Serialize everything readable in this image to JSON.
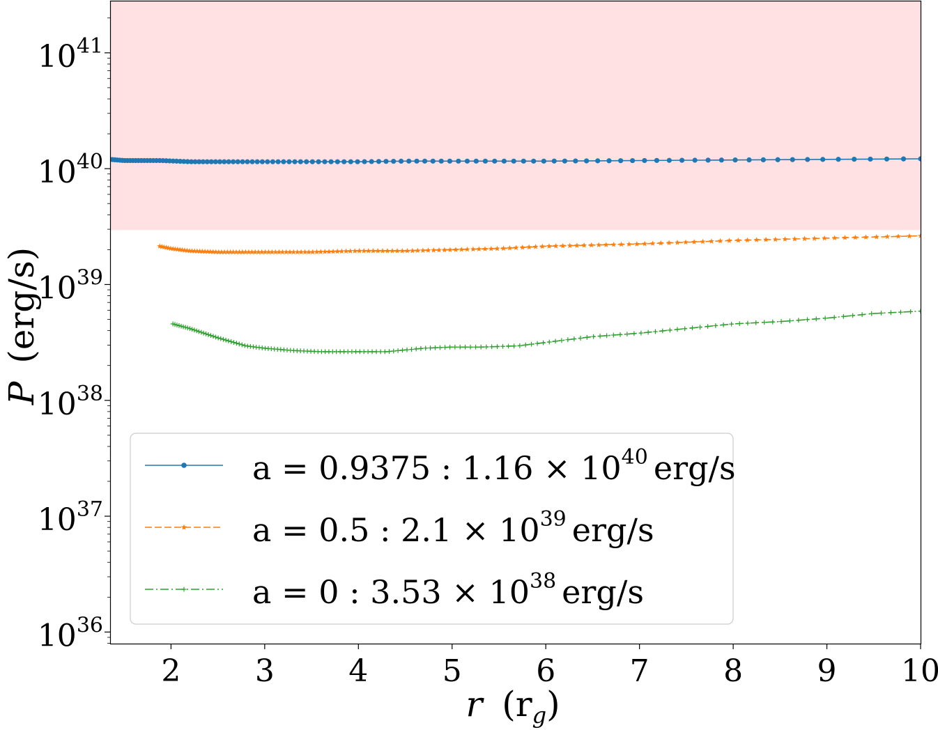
{
  "chart_data": {
    "type": "line",
    "x_axis": {
      "label_main": "r",
      "label_unit": "(r",
      "label_sub": "g",
      "label_close": ")",
      "range": [
        1.35,
        10
      ],
      "ticks": [
        {
          "value": 2,
          "label": "2"
        },
        {
          "value": 3,
          "label": "3"
        },
        {
          "value": 4,
          "label": "4"
        },
        {
          "value": 5,
          "label": "5"
        },
        {
          "value": 6,
          "label": "6"
        },
        {
          "value": 7,
          "label": "7"
        },
        {
          "value": 8,
          "label": "8"
        },
        {
          "value": 9,
          "label": "9"
        },
        {
          "value": 10,
          "label": "10"
        }
      ]
    },
    "y_axis": {
      "label_main": "P",
      "label_unit": "(erg/s)",
      "scale": "log",
      "range_exp": [
        35.9,
        41.45
      ],
      "ticks": [
        {
          "exp": 36,
          "base": "10",
          "sup": "36"
        },
        {
          "exp": 37,
          "base": "10",
          "sup": "37"
        },
        {
          "exp": 38,
          "base": "10",
          "sup": "38"
        },
        {
          "exp": 39,
          "base": "10",
          "sup": "39"
        },
        {
          "exp": 40,
          "base": "10",
          "sup": "40"
        },
        {
          "exp": 41,
          "base": "10",
          "sup": "41"
        }
      ]
    },
    "shaded_region": {
      "y_min_exp": 39.47,
      "color": "#ffe1e3"
    },
    "legend_position": "lower-left",
    "series": [
      {
        "color": "#1f77b4",
        "line_style": "solid",
        "marker": "circle",
        "legend": {
          "a_label": "a = 0.9375 :",
          "mantissa": "1.16 × 10",
          "exponent": "40",
          "unit": "erg/s"
        },
        "points": [
          [
            1.35,
            40.08
          ],
          [
            1.5,
            40.07
          ],
          [
            1.7,
            40.07
          ],
          [
            1.9,
            40.07
          ],
          [
            2.2,
            40.06
          ],
          [
            2.6,
            40.06
          ],
          [
            3.0,
            40.06
          ],
          [
            3.5,
            40.06
          ],
          [
            4.0,
            40.06
          ],
          [
            4.5,
            40.065
          ],
          [
            5.0,
            40.065
          ],
          [
            6.0,
            40.065
          ],
          [
            7.0,
            40.07
          ],
          [
            8.0,
            40.075
          ],
          [
            9.0,
            40.08
          ],
          [
            10.0,
            40.085
          ]
        ]
      },
      {
        "color": "#ff7f0e",
        "line_style": "dashed",
        "marker": "star",
        "legend": {
          "a_label": "a = 0.5 :",
          "mantissa": "2.1 × 10",
          "exponent": "39",
          "unit": "erg/s"
        },
        "points": [
          [
            1.88,
            39.33
          ],
          [
            2.0,
            39.31
          ],
          [
            2.2,
            39.29
          ],
          [
            2.5,
            39.28
          ],
          [
            3.0,
            39.28
          ],
          [
            3.5,
            39.28
          ],
          [
            4.0,
            39.29
          ],
          [
            4.5,
            39.29
          ],
          [
            5.0,
            39.3
          ],
          [
            5.5,
            39.31
          ],
          [
            6.0,
            39.33
          ],
          [
            7.0,
            39.35
          ],
          [
            8.0,
            39.38
          ],
          [
            9.0,
            39.4
          ],
          [
            10.0,
            39.42
          ]
        ]
      },
      {
        "color": "#2ca02c",
        "line_style": "dashdot",
        "marker": "plus",
        "legend": {
          "a_label": "a = 0 :",
          "mantissa": "3.53 × 10",
          "exponent": "38",
          "unit": "erg/s"
        },
        "points": [
          [
            2.02,
            38.66
          ],
          [
            2.2,
            38.62
          ],
          [
            2.5,
            38.54
          ],
          [
            2.8,
            38.47
          ],
          [
            3.0,
            38.45
          ],
          [
            3.3,
            38.43
          ],
          [
            3.6,
            38.42
          ],
          [
            4.0,
            38.42
          ],
          [
            4.3,
            38.42
          ],
          [
            4.7,
            38.45
          ],
          [
            5.0,
            38.46
          ],
          [
            5.3,
            38.46
          ],
          [
            5.7,
            38.47
          ],
          [
            6.0,
            38.5
          ],
          [
            6.5,
            38.55
          ],
          [
            7.0,
            38.58
          ],
          [
            7.5,
            38.62
          ],
          [
            8.0,
            38.66
          ],
          [
            8.5,
            38.68
          ],
          [
            9.0,
            38.71
          ],
          [
            9.5,
            38.75
          ],
          [
            10.0,
            38.77
          ]
        ]
      }
    ]
  }
}
